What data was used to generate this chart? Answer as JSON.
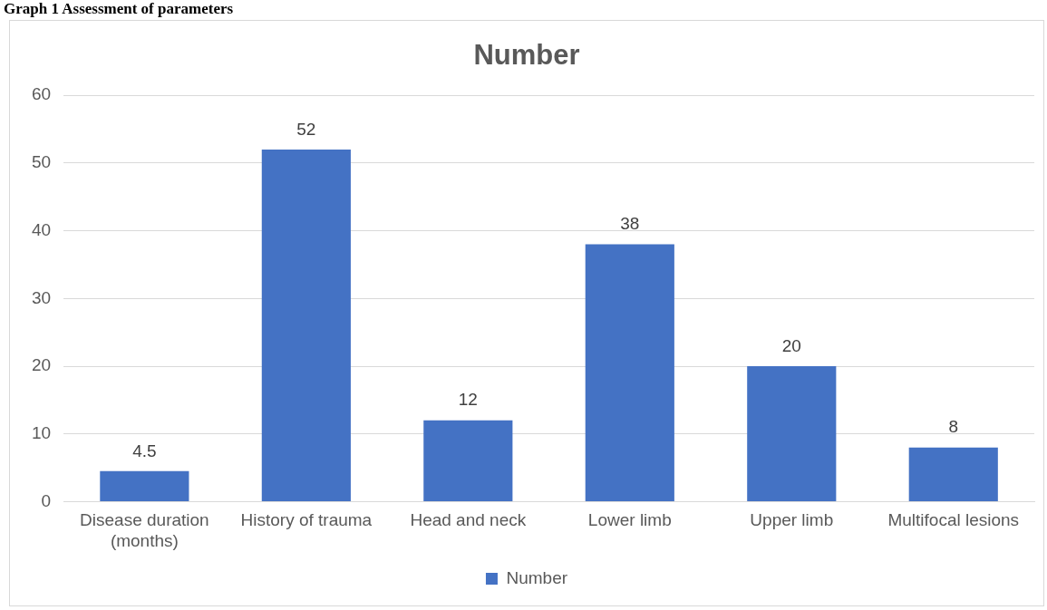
{
  "chart_data": {
    "type": "bar",
    "title": "Number",
    "annotations": [
      "Graph 1 Assessment of parameters"
    ],
    "categories": [
      "Disease duration (months)",
      "History of trauma",
      "Head and neck",
      "Lower limb",
      "Upper limb",
      "Multifocal lesions"
    ],
    "series": [
      {
        "name": "Number",
        "color": "#4472c4",
        "values": [
          4.5,
          52,
          12,
          38,
          20,
          8
        ]
      }
    ],
    "ylim": [
      0,
      60
    ],
    "yticks": [
      0,
      10,
      20,
      30,
      40,
      50,
      60
    ],
    "grid": "y",
    "legend": "bottom",
    "data_labels": true
  }
}
